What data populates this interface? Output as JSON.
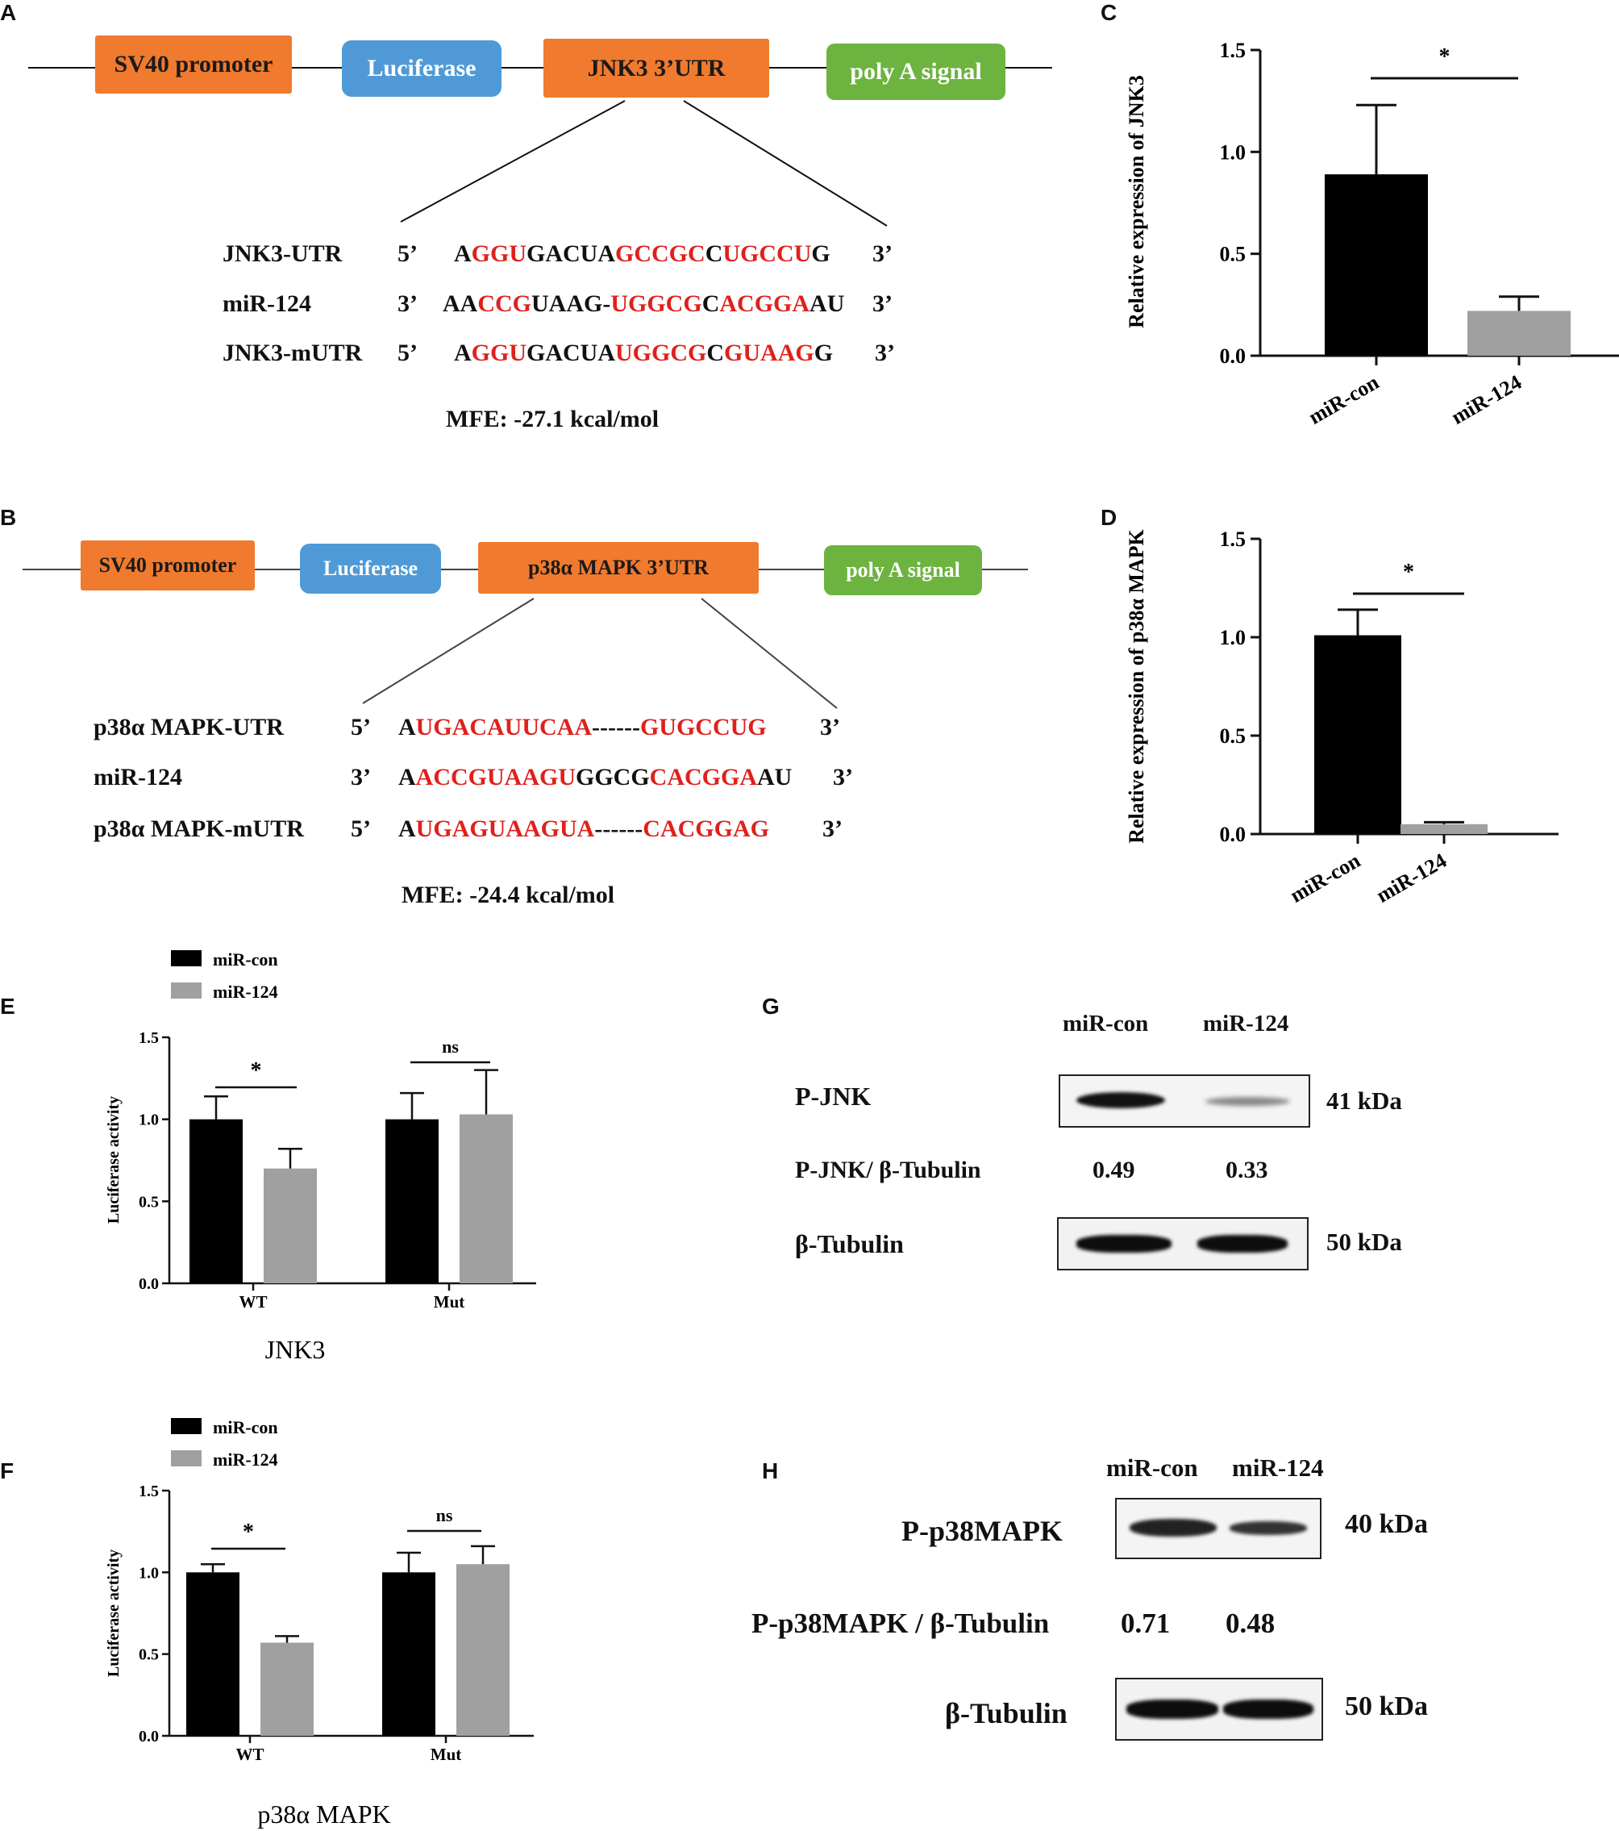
{
  "panels": {
    "A": "A",
    "B": "B",
    "C": "C",
    "D": "D",
    "E": "E",
    "F": "F",
    "G": "G",
    "H": "H"
  },
  "colors": {
    "promoter": "#f07a2e",
    "luciferase": "#4f9ad6",
    "utr": "#f07a2e",
    "polya": "#6db33f",
    "red": "#e0201b",
    "black_bar": "#000000",
    "gray_bar": "#a0a0a0"
  },
  "panelA": {
    "boxes": [
      "SV40 promoter",
      "Luciferase",
      "JNK3 3’UTR",
      "poly A signal"
    ],
    "rows": [
      {
        "name": "JNK3-UTR",
        "left": "5’",
        "right": "3’",
        "segments": [
          [
            "A",
            "k"
          ],
          [
            "GGU",
            "r"
          ],
          [
            "GACUA",
            "k"
          ],
          [
            "GCCGC",
            "r"
          ],
          [
            "C",
            "k"
          ],
          [
            "UGCCU",
            "r"
          ],
          [
            "G",
            "k"
          ]
        ]
      },
      {
        "name": "miR-124",
        "left": "3’",
        "right": "3’",
        "segments": [
          [
            "AA",
            "k"
          ],
          [
            "CCG",
            "r"
          ],
          [
            "UAAG-",
            "k"
          ],
          [
            "UGGCG",
            "r"
          ],
          [
            "C",
            "k"
          ],
          [
            "ACGGA",
            "r"
          ],
          [
            "AU",
            "k"
          ]
        ]
      },
      {
        "name": "JNK3-mUTR",
        "left": "5’",
        "right": "3’",
        "segments": [
          [
            "A",
            "k"
          ],
          [
            "GGU",
            "r"
          ],
          [
            "GACUA",
            "k"
          ],
          [
            "UGGCG",
            "r"
          ],
          [
            "C",
            "k"
          ],
          [
            "GUAAG",
            "r"
          ],
          [
            "G",
            "k"
          ]
        ]
      }
    ],
    "mfe": "MFE: -27.1 kcal/mol"
  },
  "panelB": {
    "boxes": [
      "SV40 promoter",
      "Luciferase",
      "p38α MAPK 3’UTR",
      "poly A signal"
    ],
    "rows": [
      {
        "name": "p38α MAPK-UTR",
        "left": "5’",
        "right": "3’",
        "segments": [
          [
            "A",
            "k"
          ],
          [
            "UGACAUUCAA",
            "r"
          ],
          [
            "------",
            "k"
          ],
          [
            "GUGCCUG",
            "r"
          ]
        ]
      },
      {
        "name": "miR-124",
        "left": "3’",
        "right": "3’",
        "segments": [
          [
            "A",
            "k"
          ],
          [
            "ACCGUAAGU",
            "r"
          ],
          [
            "GGCG",
            "k"
          ],
          [
            "CACGGA",
            "r"
          ],
          [
            "AU",
            "k"
          ]
        ]
      },
      {
        "name": "p38α MAPK-mUTR",
        "left": "5’",
        "right": "3’",
        "segments": [
          [
            "A",
            "k"
          ],
          [
            "UGAGUAAGUA",
            "r"
          ],
          [
            "------",
            "k"
          ],
          [
            "CACGGAG",
            "r"
          ]
        ]
      }
    ],
    "mfe": "MFE: -24.4 kcal/mol"
  },
  "chart_data": [
    {
      "id": "C",
      "type": "bar",
      "categories": [
        "miR-con",
        "miR-124"
      ],
      "values": [
        0.89,
        0.22
      ],
      "errors": [
        0.34,
        0.07
      ],
      "ylabel": "Relative expression of JNK3",
      "ylim": [
        0,
        1.5
      ],
      "yticks": [
        "0.0",
        "0.5",
        "1.0",
        "1.5"
      ],
      "annotation": "*"
    },
    {
      "id": "D",
      "type": "bar",
      "categories": [
        "miR-con",
        "miR-124"
      ],
      "values": [
        1.01,
        0.05
      ],
      "errors": [
        0.13,
        0.01
      ],
      "ylabel": "Relative expression of p38α MAPK",
      "ylim": [
        0,
        1.5
      ],
      "yticks": [
        "0.0",
        "0.5",
        "1.0",
        "1.5"
      ],
      "annotation": "*"
    },
    {
      "id": "E",
      "type": "bar",
      "categories": [
        "WT",
        "Mut"
      ],
      "series": [
        {
          "name": "miR-con",
          "values": [
            1.0,
            1.0
          ],
          "errors": [
            0.14,
            0.16
          ]
        },
        {
          "name": "miR-124",
          "values": [
            0.7,
            1.03
          ],
          "errors": [
            0.12,
            0.27
          ]
        }
      ],
      "ylabel": "Luciferase activity",
      "xlabel": "JNK3",
      "ylim": [
        0,
        1.5
      ],
      "yticks": [
        "0.0",
        "0.5",
        "1.0",
        "1.5"
      ],
      "annotations": [
        "*",
        "ns"
      ]
    },
    {
      "id": "F",
      "type": "bar",
      "categories": [
        "WT",
        "Mut"
      ],
      "series": [
        {
          "name": "miR-con",
          "values": [
            1.0,
            1.0
          ],
          "errors": [
            0.05,
            0.12
          ]
        },
        {
          "name": "miR-124",
          "values": [
            0.57,
            1.05
          ],
          "errors": [
            0.04,
            0.11
          ]
        }
      ],
      "ylabel": "Luciferase activity",
      "xlabel": "p38α MAPK",
      "ylim": [
        0,
        1.5
      ],
      "yticks": [
        "0.0",
        "0.5",
        "1.0",
        "1.5"
      ],
      "annotations": [
        "*",
        "ns"
      ]
    }
  ],
  "panelG": {
    "cols": [
      "miR-con",
      "miR-124"
    ],
    "band1": "P-JNK",
    "ratio_label": "P-JNK/ β-Tubulin",
    "ratios": [
      "0.49",
      "0.33"
    ],
    "band2": "β-Tubulin",
    "kda1": "41  kDa",
    "kda2": "50  kDa"
  },
  "panelH": {
    "cols": [
      "miR-con",
      "miR-124"
    ],
    "band1": "P-p38MAPK",
    "ratio_label": "P-p38MAPK / β-Tubulin",
    "ratios": [
      "0.71",
      "0.48"
    ],
    "band2": "β-Tubulin",
    "kda1": "40  kDa",
    "kda2": "50  kDa"
  }
}
